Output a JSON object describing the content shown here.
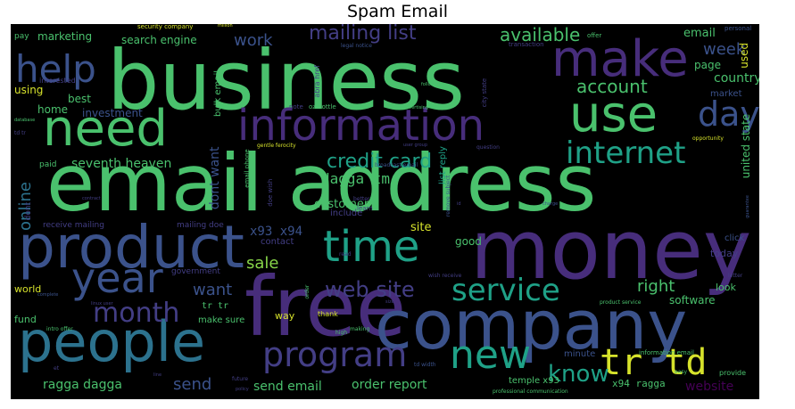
{
  "title": "Spam Email",
  "chart_data": {
    "type": "wordcloud",
    "title": "Spam Email",
    "palette": {
      "yellow": "#d6e22b",
      "lime": "#87d549",
      "green": "#4ac16d",
      "teal": "#1fa187",
      "cyan": "#21918c",
      "blue": "#2c728e",
      "slate": "#3b528b",
      "indigo": "#433e85",
      "purple": "#472d7b",
      "violet": "#440154"
    },
    "words": [
      {
        "text": "business",
        "weight": 100,
        "color": "green"
      },
      {
        "text": "email address",
        "weight": 100,
        "color": "green"
      },
      {
        "text": "money",
        "weight": 78,
        "color": "purple"
      },
      {
        "text": "free",
        "weight": 80,
        "color": "purple"
      },
      {
        "text": "company",
        "weight": 68,
        "color": "slate"
      },
      {
        "text": "product",
        "weight": 58,
        "color": "slate"
      },
      {
        "text": "people",
        "weight": 56,
        "color": "blue"
      },
      {
        "text": "need",
        "weight": 54,
        "color": "green"
      },
      {
        "text": "make",
        "weight": 50,
        "color": "purple"
      },
      {
        "text": "use",
        "weight": 48,
        "color": "green"
      },
      {
        "text": "information",
        "weight": 42,
        "color": "purple"
      },
      {
        "text": "time",
        "weight": 38,
        "color": "teal"
      },
      {
        "text": "year",
        "weight": 36,
        "color": "slate"
      },
      {
        "text": "help",
        "weight": 34,
        "color": "slate"
      },
      {
        "text": "new",
        "weight": 34,
        "color": "teal"
      },
      {
        "text": "tr td",
        "weight": 32,
        "color": "yellow"
      },
      {
        "text": "day",
        "weight": 30,
        "color": "slate"
      },
      {
        "text": "internet",
        "weight": 28,
        "color": "teal"
      },
      {
        "text": "program",
        "weight": 28,
        "color": "indigo"
      },
      {
        "text": "service",
        "weight": 26,
        "color": "teal"
      },
      {
        "text": "month",
        "weight": 24,
        "color": "indigo"
      },
      {
        "text": "know",
        "weight": 22,
        "color": "teal"
      },
      {
        "text": "web site",
        "weight": 20,
        "color": "indigo"
      },
      {
        "text": "credit card",
        "weight": 18,
        "color": "teal"
      },
      {
        "text": "mailing list",
        "weight": 18,
        "color": "indigo"
      },
      {
        "text": "available",
        "weight": 16,
        "color": "green"
      },
      {
        "text": "account",
        "weight": 16,
        "color": "green"
      },
      {
        "text": "week",
        "weight": 15,
        "color": "slate"
      },
      {
        "text": "work",
        "weight": 15,
        "color": "slate"
      },
      {
        "text": "online",
        "weight": 15,
        "color": "blue"
      },
      {
        "text": "want",
        "weight": 15,
        "color": "slate"
      },
      {
        "text": "sale",
        "weight": 15,
        "color": "lime"
      },
      {
        "text": "right",
        "weight": 15,
        "color": "green"
      },
      {
        "text": "send",
        "weight": 15,
        "color": "slate"
      },
      {
        "text": "dagga tm",
        "weight": 13,
        "color": "green"
      },
      {
        "text": "seventh heaven",
        "weight": 12,
        "color": "green"
      },
      {
        "text": "ragga dagga",
        "weight": 12,
        "color": "green"
      },
      {
        "text": "send email",
        "weight": 12,
        "color": "green"
      },
      {
        "text": "order report",
        "weight": 12,
        "color": "green"
      },
      {
        "text": "x93 x94",
        "weight": 12,
        "color": "slate"
      },
      {
        "text": "country",
        "weight": 12,
        "color": "green"
      },
      {
        "text": "dont want",
        "weight": 12,
        "color": "slate"
      },
      {
        "text": "website",
        "weight": 12,
        "color": "violet"
      },
      {
        "text": "customer",
        "weight": 11,
        "color": "green"
      },
      {
        "text": "email",
        "weight": 11,
        "color": "green"
      },
      {
        "text": "site",
        "weight": 11,
        "color": "yellow"
      },
      {
        "text": "marketing",
        "weight": 10,
        "color": "green"
      },
      {
        "text": "search engine",
        "weight": 10,
        "color": "green"
      },
      {
        "text": "best",
        "weight": 10,
        "color": "green"
      },
      {
        "text": "home",
        "weight": 10,
        "color": "green"
      },
      {
        "text": "investment",
        "weight": 10,
        "color": "slate"
      },
      {
        "text": "using",
        "weight": 10,
        "color": "yellow"
      },
      {
        "text": "united state",
        "weight": 10,
        "color": "green"
      },
      {
        "text": "page",
        "weight": 10,
        "color": "green"
      },
      {
        "text": "used",
        "weight": 10,
        "color": "yellow"
      },
      {
        "text": "software",
        "weight": 10,
        "color": "green"
      },
      {
        "text": "good",
        "weight": 10,
        "color": "green"
      },
      {
        "text": "today",
        "weight": 9,
        "color": "indigo"
      },
      {
        "text": "look",
        "weight": 9,
        "color": "green"
      },
      {
        "text": "fund",
        "weight": 9,
        "color": "green"
      },
      {
        "text": "world",
        "weight": 9,
        "color": "yellow"
      },
      {
        "text": "way",
        "weight": 9,
        "color": "yellow"
      },
      {
        "text": "x94 ragga",
        "weight": 9,
        "color": "green"
      },
      {
        "text": "bulk email",
        "weight": 9,
        "color": "green"
      },
      {
        "text": "make sure",
        "weight": 8,
        "color": "green"
      },
      {
        "text": "temple x93",
        "weight": 8,
        "color": "green"
      },
      {
        "text": "list reply",
        "weight": 8,
        "color": "teal"
      },
      {
        "text": "contact",
        "weight": 8,
        "color": "indigo"
      },
      {
        "text": "include",
        "weight": 8,
        "color": "indigo"
      },
      {
        "text": "market",
        "weight": 8,
        "color": "slate"
      },
      {
        "text": "click",
        "weight": 8,
        "color": "slate"
      },
      {
        "text": "minute",
        "weight": 8,
        "color": "slate"
      },
      {
        "text": "tr tr",
        "weight": 8,
        "color": "green"
      },
      {
        "text": "receive mailing",
        "weight": 7,
        "color": "indigo"
      },
      {
        "text": "mailing doe",
        "weight": 7,
        "color": "indigo"
      },
      {
        "text": "government",
        "weight": 7,
        "color": "indigo"
      },
      {
        "text": "paid",
        "weight": 7,
        "color": "green"
      },
      {
        "text": "dont",
        "weight": 7,
        "color": "indigo"
      },
      {
        "text": "pay",
        "weight": 7,
        "color": "green"
      },
      {
        "text": "interested",
        "weight": 6,
        "color": "indigo"
      },
      {
        "text": "thank",
        "weight": 6,
        "color": "yellow"
      },
      {
        "text": "provide",
        "weight": 6,
        "color": "green"
      },
      {
        "text": "security company",
        "weight": 6,
        "color": "yellow"
      },
      {
        "text": "information email",
        "weight": 6,
        "color": "green"
      },
      {
        "text": "personal",
        "weight": 6,
        "color": "slate"
      },
      {
        "text": "offer",
        "weight": 6,
        "color": "green"
      },
      {
        "text": "transaction",
        "weight": 6,
        "color": "indigo"
      },
      {
        "text": "legal notice",
        "weight": 5,
        "color": "slate"
      },
      {
        "text": "note",
        "weight": 5,
        "color": "indigo"
      },
      {
        "text": "oz bottle",
        "weight": 6,
        "color": "green"
      },
      {
        "text": "abra href",
        "weight": 6,
        "color": "indigo"
      },
      {
        "text": "city state",
        "weight": 5,
        "color": "indigo"
      },
      {
        "text": "gentle ferocity",
        "weight": 5,
        "color": "yellow"
      },
      {
        "text": "broadcast email",
        "weight": 5,
        "color": "slate"
      },
      {
        "text": "remove subject",
        "weight": 5,
        "color": "slate"
      },
      {
        "text": "question",
        "weight": 5,
        "color": "indigo"
      },
      {
        "text": "doe wish",
        "weight": 5,
        "color": "indigo"
      },
      {
        "text": "email phone",
        "weight": 5,
        "color": "green"
      },
      {
        "text": "learn",
        "weight": 5,
        "color": "indigo"
      },
      {
        "text": "better",
        "weight": 5,
        "color": "indigo"
      },
      {
        "text": "read",
        "weight": 5,
        "color": "indigo"
      },
      {
        "text": "order",
        "weight": 5,
        "color": "green"
      },
      {
        "text": "wish receive",
        "weight": 5,
        "color": "indigo"
      },
      {
        "text": "intro offer",
        "weight": 5,
        "color": "green"
      },
      {
        "text": "high",
        "weight": 5,
        "color": "green"
      },
      {
        "text": "making",
        "weight": 5,
        "color": "green"
      },
      {
        "text": "td width",
        "weight": 5,
        "color": "slate"
      },
      {
        "text": "product service",
        "weight": 5,
        "color": "green"
      },
      {
        "text": "easy",
        "weight": 5,
        "color": "green"
      },
      {
        "text": "letter",
        "weight": 5,
        "color": "indigo"
      },
      {
        "text": "opportunity",
        "weight": 5,
        "color": "yellow"
      },
      {
        "text": "professional communication",
        "weight": 5,
        "color": "green"
      },
      {
        "text": "future",
        "weight": 5,
        "color": "indigo"
      },
      {
        "text": "policy",
        "weight": 4,
        "color": "indigo"
      },
      {
        "text": "td tr",
        "weight": 4,
        "color": "indigo"
      },
      {
        "text": "database",
        "weight": 4,
        "color": "green"
      },
      {
        "text": "following",
        "weight": 4,
        "color": "green"
      },
      {
        "text": "advertising",
        "weight": 4,
        "color": "green"
      },
      {
        "text": "user group",
        "weight": 4,
        "color": "indigo"
      },
      {
        "text": "million",
        "weight": 4,
        "color": "yellow"
      },
      {
        "text": "linux user",
        "weight": 4,
        "color": "indigo"
      },
      {
        "text": "guarantee",
        "weight": 4,
        "color": "slate"
      },
      {
        "text": "complete",
        "weight": 4,
        "color": "slate"
      },
      {
        "text": "contract",
        "weight": 4,
        "color": "indigo"
      },
      {
        "text": "charge",
        "weight": 4,
        "color": "slate"
      },
      {
        "text": "et",
        "weight": 4,
        "color": "indigo"
      },
      {
        "text": "line",
        "weight": 4,
        "color": "indigo"
      },
      {
        "text": "size",
        "weight": 4,
        "color": "indigo"
      },
      {
        "text": "id",
        "weight": 4,
        "color": "indigo"
      }
    ]
  }
}
